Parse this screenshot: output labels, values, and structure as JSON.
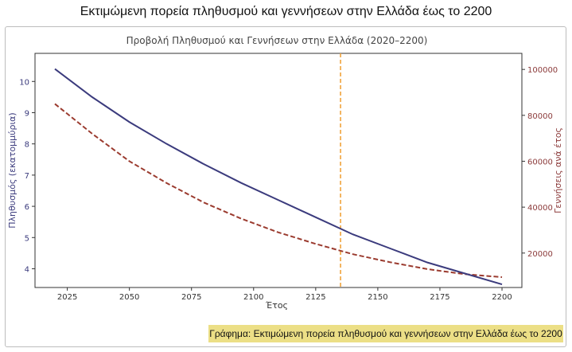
{
  "headline": "Εκτιμώμενη πορεία πληθυσμού και γεννήσεων στην Ελλάδα έως το 2200",
  "caption": "Γράφημα: Εκτιμώμενη πορεία πληθυσμού και γεννήσεων στην Ελλάδα έως το 2200",
  "colors": {
    "population": "#3b3b7d",
    "births": "#9b3b2f",
    "marker_line": "#f0a33b",
    "right_axis": "#8b3a3a",
    "caption_bg": "#ecdf86"
  },
  "chart_data": {
    "type": "line",
    "title": "Προβολή Πληθυσμού και Γεννήσεων στην Ελλάδα (2020–2200)",
    "xlabel": "Έτος",
    "ylabel": "Πληθυσμός (εκατομμύρια)",
    "y2label": "Γεννήσεις ανά έτος",
    "xlim": [
      2012,
      2208
    ],
    "ylim": [
      3.4,
      10.9
    ],
    "y2lim": [
      5000,
      107000
    ],
    "xticks": [
      2025,
      2050,
      2075,
      2100,
      2125,
      2150,
      2175,
      2200
    ],
    "yticks": [
      4,
      5,
      6,
      7,
      8,
      9,
      10
    ],
    "y2ticks": [
      20000,
      40000,
      60000,
      80000,
      100000
    ],
    "y2tick_labels": [
      "20000",
      "40000",
      "60000",
      "80000",
      "100000"
    ],
    "vline_x": 2135,
    "grid": false,
    "series": [
      {
        "axis": "left",
        "style": "solid",
        "x": [
          2020,
          2035,
          2050,
          2065,
          2080,
          2095,
          2110,
          2125,
          2140,
          2155,
          2170,
          2185,
          2200
        ],
        "values": [
          10.4,
          9.5,
          8.7,
          8.0,
          7.35,
          6.75,
          6.2,
          5.65,
          5.1,
          4.65,
          4.2,
          3.85,
          3.5
        ]
      },
      {
        "axis": "right",
        "style": "dashed",
        "x": [
          2020,
          2035,
          2050,
          2065,
          2080,
          2095,
          2110,
          2125,
          2140,
          2155,
          2170,
          2185,
          2200
        ],
        "values": [
          85000,
          72000,
          60000,
          50500,
          42000,
          35000,
          29000,
          24000,
          19500,
          16000,
          13000,
          10800,
          9500
        ]
      }
    ]
  }
}
